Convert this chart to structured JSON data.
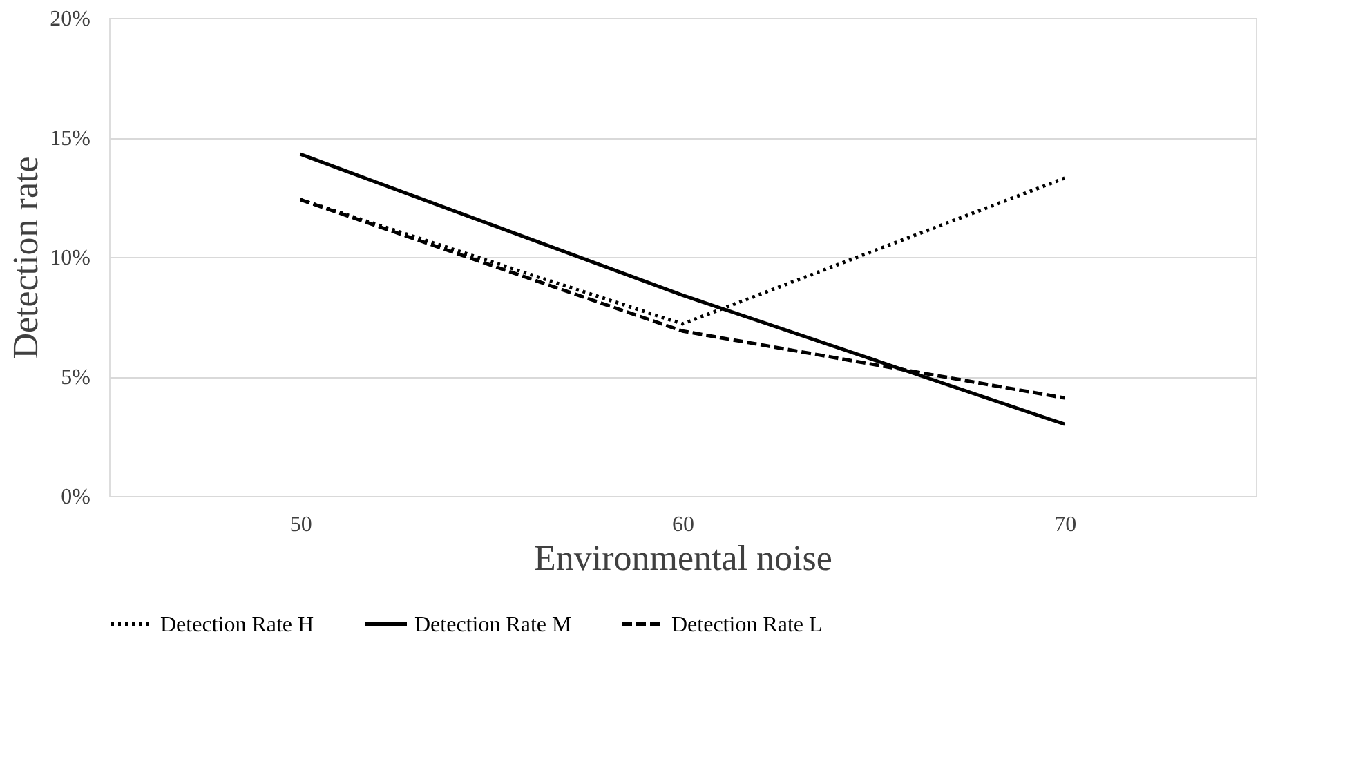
{
  "chart_data": {
    "type": "line",
    "xlabel": "Environmental noise",
    "ylabel": "Detection rate",
    "categories": [
      "50",
      "60",
      "70"
    ],
    "series": [
      {
        "name": "Detection Rate H",
        "color": "#000000",
        "line_style": "dotted",
        "values": [
          12.4,
          7.2,
          13.3
        ]
      },
      {
        "name": "Detection Rate M",
        "color": "#000000",
        "line_style": "solid",
        "values": [
          14.3,
          8.4,
          3.0
        ]
      },
      {
        "name": "Detection Rate L",
        "color": "#000000",
        "line_style": "dashed",
        "values": [
          12.4,
          6.9,
          4.1
        ]
      }
    ],
    "ylim": [
      0,
      20
    ],
    "yticks": [
      {
        "value": 0,
        "label": "0%"
      },
      {
        "value": 5,
        "label": "5%"
      },
      {
        "value": 10,
        "label": "10%"
      },
      {
        "value": 15,
        "label": "15%"
      },
      {
        "value": 20,
        "label": "20%"
      }
    ],
    "grid": "y",
    "legend": "bottom",
    "marker": "none"
  }
}
